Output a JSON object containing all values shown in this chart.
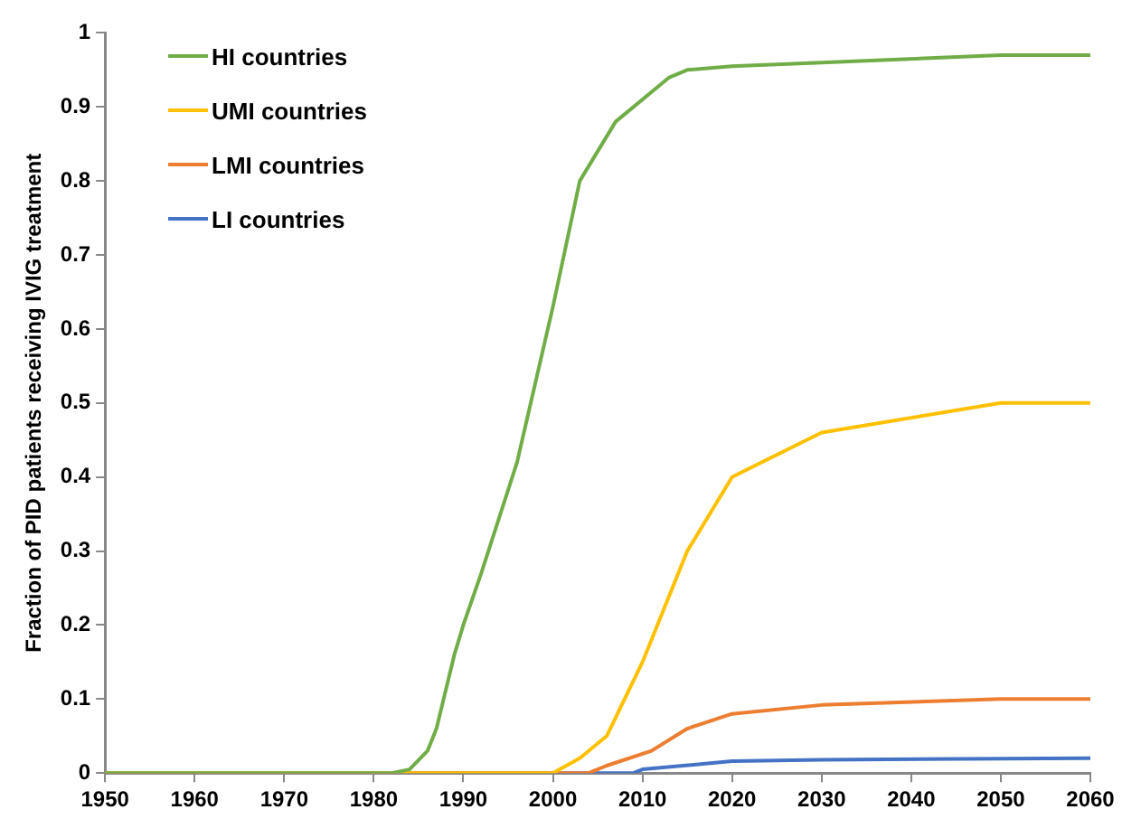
{
  "chart_data": {
    "type": "line",
    "ylabel": "Fraction of PID patients receiving IVIG treatment",
    "xlim": [
      1950,
      2060
    ],
    "xticks": [
      1950,
      1960,
      1970,
      1980,
      1990,
      2000,
      2010,
      2020,
      2030,
      2040,
      2050,
      2060
    ],
    "ylim": [
      0,
      1
    ],
    "yticks": [
      0,
      0.1,
      0.2,
      0.3,
      0.4,
      0.5,
      0.6,
      0.7,
      0.8,
      0.9,
      1
    ],
    "grid": false,
    "legend": "top left",
    "marker": "none",
    "line_style": "solid",
    "series": [
      {
        "name": "HI countries",
        "color": "#70ad47",
        "x": [
          1950,
          1982,
          1984,
          1986,
          1987,
          1988,
          1989,
          1990,
          1992,
          1996,
          2000,
          2003,
          2007,
          2013,
          2015,
          2020,
          2030,
          2050,
          2060
        ],
        "values": [
          0,
          0,
          0.005,
          0.03,
          0.06,
          0.11,
          0.16,
          0.2,
          0.27,
          0.42,
          0.63,
          0.8,
          0.88,
          0.94,
          0.95,
          0.955,
          0.96,
          0.97,
          0.97
        ]
      },
      {
        "name": "UMI countries",
        "color": "#ffc000",
        "x": [
          1950,
          2000,
          2003,
          2006,
          2010,
          2015,
          2020,
          2030,
          2050,
          2060
        ],
        "values": [
          0,
          0,
          0.02,
          0.05,
          0.15,
          0.3,
          0.4,
          0.46,
          0.5,
          0.5
        ]
      },
      {
        "name": "LMI countries",
        "color": "#ed7d31",
        "x": [
          1950,
          2004,
          2006,
          2011,
          2015,
          2020,
          2030,
          2050,
          2060
        ],
        "values": [
          0,
          0,
          0.01,
          0.03,
          0.06,
          0.08,
          0.092,
          0.1,
          0.1
        ]
      },
      {
        "name": "LI countries",
        "color": "#4472c4",
        "x": [
          1950,
          2009,
          2010,
          2020,
          2030,
          2060
        ],
        "values": [
          0,
          0,
          0.005,
          0.016,
          0.018,
          0.02
        ]
      }
    ]
  }
}
